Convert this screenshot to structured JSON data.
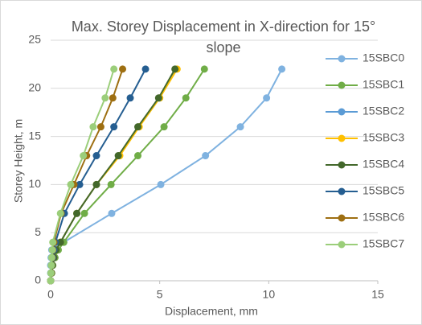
{
  "chart_data": {
    "type": "line",
    "title": "Max. Storey Displacement in X-direction for 15° slope",
    "x_label": "Displacement, mm",
    "y_label": "Storey Height, m",
    "xlim": [
      0,
      15
    ],
    "xticks": [
      0,
      5,
      10,
      15
    ],
    "ylim": [
      0,
      25
    ],
    "yticks": [
      0,
      5,
      10,
      15,
      20,
      25
    ],
    "grid": true,
    "legend": "right",
    "y": [
      0,
      0.8,
      1.6,
      2.4,
      3.2,
      4,
      7,
      10,
      13,
      16,
      19,
      22
    ],
    "series": [
      {
        "name": "15SBC0",
        "color": "#7fb2e0",
        "values": [
          0,
          0,
          0,
          0.02,
          0.05,
          0.6,
          2.8,
          5.05,
          7.1,
          8.7,
          9.9,
          10.6
        ]
      },
      {
        "name": "15SBC1",
        "color": "#70ad47",
        "values": [
          0,
          0.05,
          0.1,
          0.2,
          0.35,
          0.6,
          1.55,
          2.77,
          4.0,
          5.2,
          6.2,
          7.05
        ]
      },
      {
        "name": "15SBC2",
        "color": "#5b9bd5",
        "values": [
          0,
          0.04,
          0.08,
          0.15,
          0.25,
          0.45,
          1.2,
          2.1,
          3.15,
          4.05,
          5.0,
          5.75
        ]
      },
      {
        "name": "15SBC3",
        "color": "#ffc000",
        "values": [
          0,
          0.04,
          0.08,
          0.15,
          0.25,
          0.45,
          1.2,
          2.1,
          3.17,
          4.06,
          5.0,
          5.8
        ]
      },
      {
        "name": "15SBC4",
        "color": "#43682b",
        "values": [
          0,
          0.04,
          0.08,
          0.15,
          0.25,
          0.45,
          1.2,
          2.1,
          3.1,
          4.0,
          4.95,
          5.7
        ]
      },
      {
        "name": "15SBC5",
        "color": "#255e91",
        "values": [
          0,
          0.02,
          0.05,
          0.1,
          0.15,
          0.22,
          0.63,
          1.33,
          2.1,
          2.9,
          3.65,
          4.35
        ]
      },
      {
        "name": "15SBC6",
        "color": "#9e6f12",
        "values": [
          0,
          0.02,
          0.04,
          0.07,
          0.1,
          0.15,
          0.48,
          1.07,
          1.65,
          2.3,
          2.85,
          3.3
        ]
      },
      {
        "name": "15SBC7",
        "color": "#9bce7a",
        "values": [
          0,
          0.01,
          0.03,
          0.05,
          0.08,
          0.1,
          0.45,
          0.92,
          1.5,
          1.95,
          2.5,
          2.9
        ]
      }
    ]
  }
}
